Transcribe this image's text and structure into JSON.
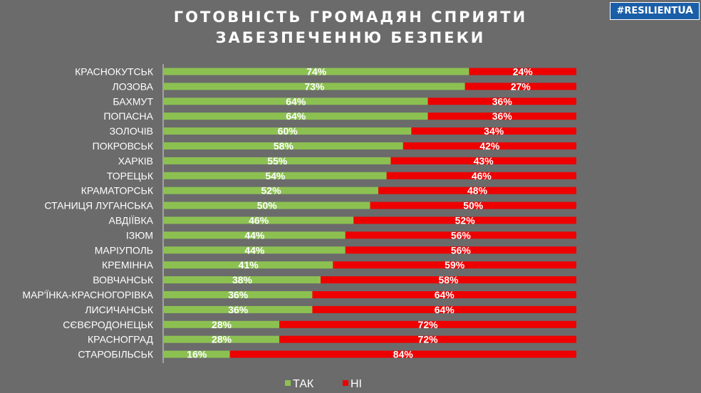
{
  "header": {
    "title_line1": "ГОТОВНІСТЬ ГРОМАДЯН  СПРИЯТИ",
    "title_line2": "ЗАБЕЗПЕЧЕННЮ БЕЗПЕКИ",
    "brand": {
      "prefix": "#",
      "name": "RESILIENT",
      "suffix": "UA"
    }
  },
  "colors": {
    "background": "#6b6b6b",
    "yes": "#8cc152",
    "no": "#ee0000",
    "brand": "#1a5ea8"
  },
  "chart_data": {
    "type": "bar",
    "orientation": "horizontal",
    "stacked": true,
    "title": "ГОТОВНІСТЬ ГРОМАДЯН  СПРИЯТИ ЗАБЕЗПЕЧЕННЮ БЕЗПЕКИ",
    "categories": [
      "КРАСНОКУТСЬК",
      "ЛОЗОВА",
      "БАХМУТ",
      "ПОПАСНА",
      "ЗОЛОЧІВ",
      "ПОКРОВСЬК",
      "ХАРКІВ",
      "ТОРЕЦЬК",
      "КРАМАТОРСЬК",
      "СТАНИЦЯ ЛУГАНСЬКА",
      "АВДІЇВКА",
      "ІЗЮМ",
      "МАРІУПОЛЬ",
      "КРЕМІННА",
      "ВОВЧАНСЬК",
      "МАР'ЇНКА-КРАСНОГОРІВКА",
      "ЛИСИЧАНСЬК",
      "СЄВЄРОДОНЕЦЬК",
      "КРАСНОГРАД",
      "СТАРОБІЛЬСЬК"
    ],
    "series": [
      {
        "name": "ТАК",
        "color": "#8cc152",
        "values": [
          74,
          73,
          64,
          64,
          60,
          58,
          55,
          54,
          52,
          50,
          46,
          44,
          44,
          41,
          38,
          36,
          36,
          28,
          28,
          16
        ]
      },
      {
        "name": "НІ",
        "color": "#ee0000",
        "values": [
          24,
          27,
          36,
          36,
          34,
          42,
          43,
          46,
          48,
          50,
          52,
          56,
          56,
          59,
          58,
          64,
          64,
          72,
          72,
          84
        ]
      }
    ],
    "value_suffix": "%",
    "legend": {
      "position": "bottom"
    },
    "grid": false
  }
}
